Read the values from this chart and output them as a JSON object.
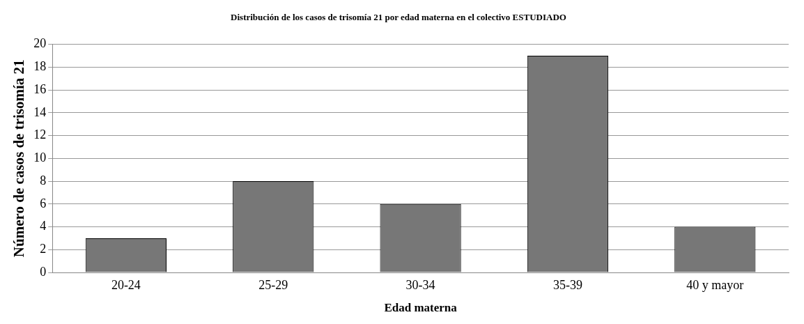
{
  "chart_data": {
    "type": "bar",
    "title": "Distribución de los casos de trisomía 21 por edad materna en el colectivo ESTUDIADO",
    "xlabel": "Edad materna",
    "ylabel": "Número de casos de trisomía 21",
    "categories": [
      "20-24",
      "25-29",
      "30-34",
      "35-39",
      "40 y mayor"
    ],
    "values": [
      3,
      8,
      6,
      19,
      4
    ],
    "color": "#777777",
    "ylim": [
      0,
      20
    ],
    "yticks": [
      0,
      2,
      4,
      6,
      8,
      10,
      12,
      14,
      16,
      18,
      20
    ],
    "grid": "y",
    "legend": false
  }
}
